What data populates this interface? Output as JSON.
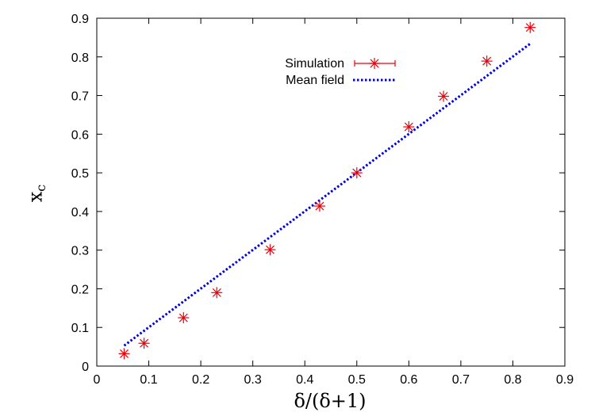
{
  "chart_data": {
    "type": "scatter",
    "xlabel": "δ/(δ+1)",
    "ylabel": "x_c",
    "xlim": [
      0,
      0.9
    ],
    "ylim": [
      0,
      0.9
    ],
    "xticks": [
      "0",
      "0.1",
      "0.2",
      "0.3",
      "0.4",
      "0.5",
      "0.6",
      "0.7",
      "0.8",
      "0.9"
    ],
    "yticks": [
      "0",
      "0.1",
      "0.2",
      "0.3",
      "0.4",
      "0.5",
      "0.6",
      "0.7",
      "0.8",
      "0.9"
    ],
    "grid": false,
    "legend": {
      "placement": "top-center"
    },
    "series": [
      {
        "name": "Simulation",
        "style": "points-with-errorbars",
        "color": "#e8000b",
        "x": [
          0.0526,
          0.0909,
          0.1667,
          0.2308,
          0.3333,
          0.4286,
          0.5,
          0.6,
          0.6667,
          0.75,
          0.8333
        ],
        "y": [
          0.032,
          0.059,
          0.125,
          0.19,
          0.301,
          0.414,
          0.5,
          0.619,
          0.698,
          0.789,
          0.876
        ]
      },
      {
        "name": "Mean field",
        "style": "dotted-line",
        "color": "#0000e6",
        "x": [
          0.0526,
          0.8333
        ],
        "y": [
          0.053,
          0.834
        ]
      }
    ]
  }
}
